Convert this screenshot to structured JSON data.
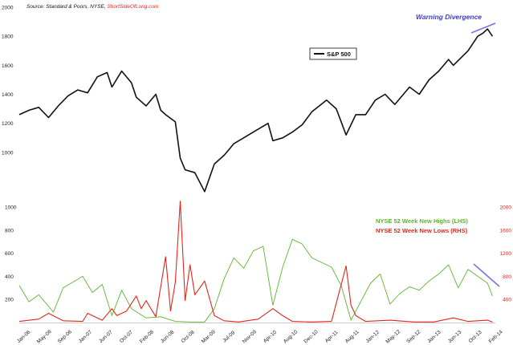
{
  "source": {
    "text": "Source: Standard & Poors, NYSE, ",
    "brand": "ShortSideOfLong.com"
  },
  "annotation": "Warning Divergence",
  "colors": {
    "sp500": "#111111",
    "highs": "#5cb52f",
    "lows": "#e2261b",
    "divergence": "#7777e0",
    "lows_axis": "#d62a1e",
    "brand": "#e2261b"
  },
  "chart_data": [
    {
      "type": "line",
      "title": "",
      "legend": {
        "position": "top-right-center",
        "entries": [
          "S&P 500"
        ]
      },
      "ylim": [
        900,
        2000
      ],
      "yticks": [
        1000,
        1200,
        1400,
        1600,
        1800,
        2000
      ],
      "series": [
        {
          "name": "S&P 500",
          "x": [
            "2006-01",
            "2006-03",
            "2006-05",
            "2006-07",
            "2006-09",
            "2006-11",
            "2007-01",
            "2007-03",
            "2007-05",
            "2007-07",
            "2007-08",
            "2007-10",
            "2007-12",
            "2008-01",
            "2008-03",
            "2008-05",
            "2008-06",
            "2008-07",
            "2008-09",
            "2008-10",
            "2008-11",
            "2009-01",
            "2009-03",
            "2009-05",
            "2009-07",
            "2009-09",
            "2009-11",
            "2010-01",
            "2010-04",
            "2010-05",
            "2010-07",
            "2010-09",
            "2010-11",
            "2011-01",
            "2011-04",
            "2011-06",
            "2011-08",
            "2011-10",
            "2011-12",
            "2012-02",
            "2012-04",
            "2012-06",
            "2012-09",
            "2012-11",
            "2013-01",
            "2013-03",
            "2013-05",
            "2013-06",
            "2013-09",
            "2013-11",
            "2013-12",
            "2014-01",
            "2014-02"
          ],
          "values": [
            1260,
            1290,
            1310,
            1240,
            1320,
            1390,
            1430,
            1410,
            1520,
            1550,
            1450,
            1560,
            1480,
            1380,
            1320,
            1400,
            1290,
            1260,
            1210,
            960,
            880,
            860,
            730,
            920,
            980,
            1060,
            1100,
            1140,
            1200,
            1080,
            1100,
            1140,
            1190,
            1280,
            1360,
            1300,
            1120,
            1260,
            1260,
            1360,
            1400,
            1330,
            1450,
            1400,
            1500,
            1560,
            1640,
            1600,
            1700,
            1800,
            1820,
            1850,
            1800
          ]
        }
      ]
    },
    {
      "type": "line",
      "title": "",
      "legend": {
        "position": "right-center",
        "entries": [
          "NYSE 52 Week New Highs (LHS)",
          "NYSE 52 Week New Lows (RHS)"
        ]
      },
      "ylim_left": [
        0,
        1000
      ],
      "yticks_left": [
        200,
        400,
        600,
        800,
        1000
      ],
      "ylim_right": [
        0,
        2000
      ],
      "yticks_right": [
        400,
        800,
        1200,
        1600,
        2000
      ],
      "categories": [
        "Jan-06",
        "May-06",
        "Sep-06",
        "Jan-07",
        "Jun-07",
        "Oct-07",
        "Feb-08",
        "Jun-08",
        "Oct-08",
        "Mar-09",
        "Jul-09",
        "Nov-09",
        "Apr-10",
        "Aug-10",
        "Dec-10",
        "Apr-11",
        "Aug-11",
        "Jan-12",
        "May-12",
        "Sep-12",
        "Jan-13",
        "Jun-13",
        "Oct-13",
        "Feb-14"
      ],
      "series": [
        {
          "name": "NYSE 52 Week New Highs (LHS)",
          "axis": "left",
          "x": [
            "2006-01",
            "2006-03",
            "2006-05",
            "2006-08",
            "2006-10",
            "2006-12",
            "2007-02",
            "2007-04",
            "2007-06",
            "2007-08",
            "2007-10",
            "2007-12",
            "2008-03",
            "2008-06",
            "2008-09",
            "2008-12",
            "2009-03",
            "2009-05",
            "2009-07",
            "2009-09",
            "2009-11",
            "2010-01",
            "2010-03",
            "2010-05",
            "2010-07",
            "2010-09",
            "2010-11",
            "2011-01",
            "2011-03",
            "2011-05",
            "2011-07",
            "2011-09",
            "2011-11",
            "2012-01",
            "2012-03",
            "2012-05",
            "2012-07",
            "2012-09",
            "2012-11",
            "2013-01",
            "2013-03",
            "2013-05",
            "2013-07",
            "2013-09",
            "2013-11",
            "2014-01",
            "2014-02"
          ],
          "values": [
            320,
            180,
            240,
            90,
            300,
            350,
            400,
            260,
            330,
            60,
            280,
            120,
            40,
            50,
            10,
            5,
            5,
            120,
            380,
            560,
            470,
            620,
            660,
            150,
            480,
            720,
            680,
            560,
            520,
            480,
            320,
            20,
            180,
            340,
            420,
            160,
            250,
            310,
            280,
            360,
            420,
            500,
            300,
            460,
            400,
            340,
            230
          ]
        },
        {
          "name": "NYSE 52 Week New Lows (RHS)",
          "axis": "right",
          "x": [
            "2006-01",
            "2006-05",
            "2006-07",
            "2006-10",
            "2007-02",
            "2007-03",
            "2007-06",
            "2007-08",
            "2007-09",
            "2007-11",
            "2008-01",
            "2008-02",
            "2008-03",
            "2008-05",
            "2008-07",
            "2008-08",
            "2008-09",
            "2008-10",
            "2008-11",
            "2008-12",
            "2009-01",
            "2009-03",
            "2009-05",
            "2009-07",
            "2009-10",
            "2010-02",
            "2010-05",
            "2010-07",
            "2010-09",
            "2011-01",
            "2011-05",
            "2011-08",
            "2011-09",
            "2011-10",
            "2011-12",
            "2012-05",
            "2012-10",
            "2013-02",
            "2013-06",
            "2013-09",
            "2014-01",
            "2014-02"
          ],
          "values": [
            20,
            60,
            160,
            30,
            20,
            160,
            40,
            240,
            120,
            200,
            460,
            240,
            380,
            100,
            1140,
            200,
            700,
            2100,
            380,
            1000,
            480,
            720,
            120,
            30,
            10,
            60,
            240,
            120,
            20,
            10,
            20,
            980,
            300,
            120,
            20,
            40,
            10,
            10,
            80,
            20,
            40,
            10
          ]
        }
      ]
    }
  ]
}
